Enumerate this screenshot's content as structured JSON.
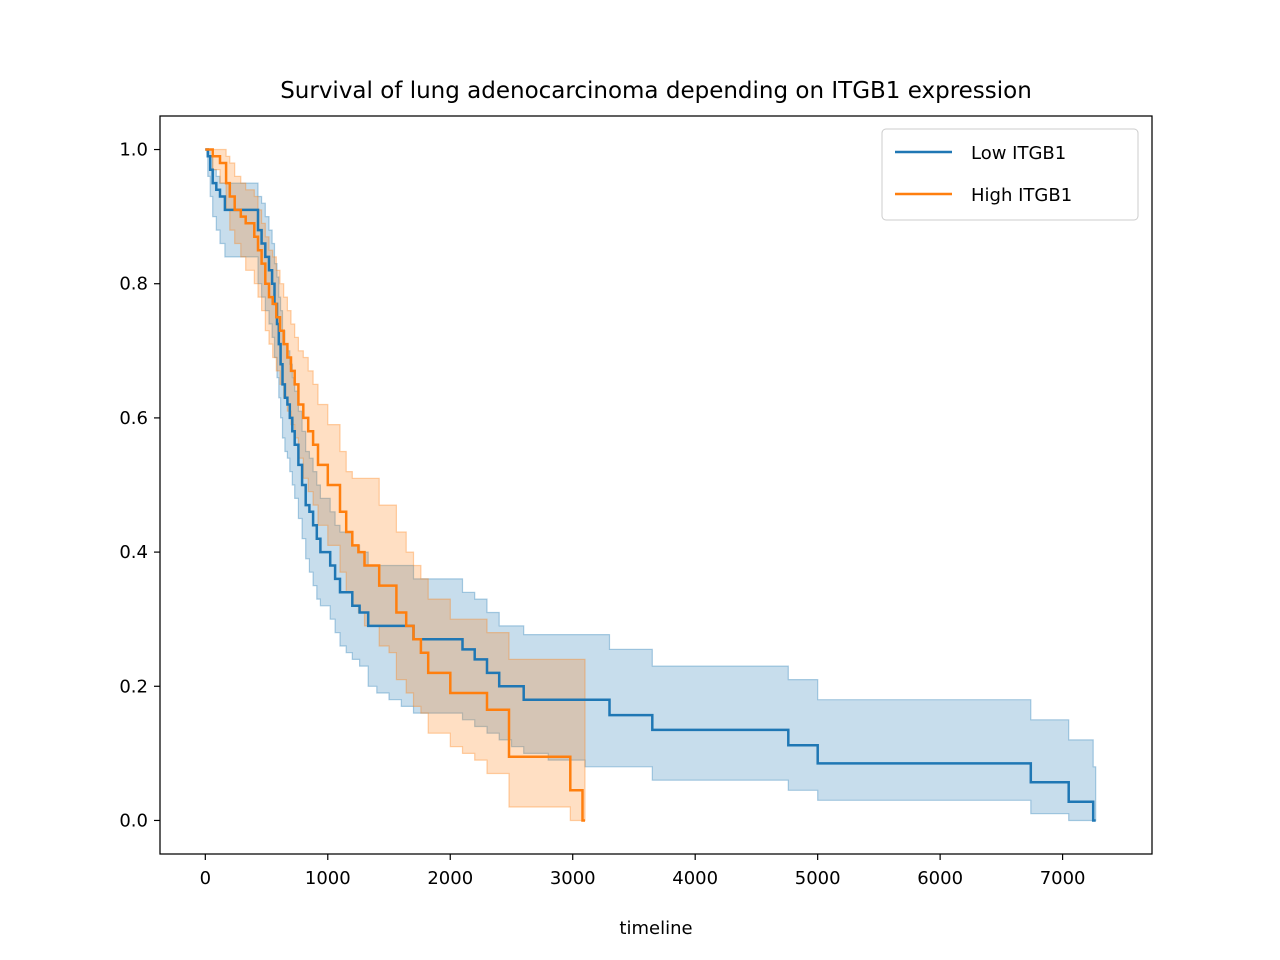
{
  "chart_data": {
    "type": "line",
    "title": "Survival of lung adenocarcinoma depending on ITGB1 expression",
    "xlabel": "timeline",
    "ylabel": "",
    "xlim": [
      -370,
      7730
    ],
    "ylim": [
      -0.05,
      1.05
    ],
    "xticks": [
      0,
      1000,
      2000,
      3000,
      4000,
      5000,
      6000,
      7000
    ],
    "xtick_labels": [
      "0",
      "1000",
      "2000",
      "3000",
      "4000",
      "5000",
      "6000",
      "7000"
    ],
    "yticks": [
      0.0,
      0.2,
      0.4,
      0.6,
      0.8,
      1.0
    ],
    "ytick_labels": [
      "0.0",
      "0.2",
      "0.4",
      "0.6",
      "0.8",
      "1.0"
    ],
    "grid": false,
    "legend_position": "top-right",
    "series": [
      {
        "name": "Low ITGB1",
        "color": "#1f77b4",
        "x": [
          0,
          20,
          40,
          60,
          90,
          120,
          160,
          200,
          250,
          300,
          350,
          400,
          430,
          460,
          490,
          520,
          545,
          565,
          585,
          600,
          615,
          630,
          650,
          670,
          690,
          710,
          730,
          760,
          790,
          820,
          850,
          880,
          910,
          940,
          980,
          1020,
          1060,
          1100,
          1150,
          1200,
          1260,
          1330,
          1400,
          1500,
          1600,
          1700,
          1800,
          1900,
          2000,
          2100,
          2200,
          2300,
          2400,
          2500,
          2600,
          2700,
          2800,
          2900,
          3000,
          3100,
          3200,
          3300,
          3500,
          3650,
          3800,
          4000,
          4200,
          4400,
          4600,
          4760,
          4800,
          4900,
          5000,
          5200,
          5500,
          6000,
          6500,
          6740,
          6800,
          7050,
          7250,
          7270
        ],
        "y": [
          1.0,
          0.99,
          0.97,
          0.95,
          0.94,
          0.93,
          0.91,
          0.91,
          0.91,
          0.91,
          0.91,
          0.91,
          0.88,
          0.86,
          0.84,
          0.82,
          0.8,
          0.77,
          0.74,
          0.71,
          0.68,
          0.65,
          0.63,
          0.62,
          0.6,
          0.58,
          0.56,
          0.53,
          0.5,
          0.47,
          0.46,
          0.44,
          0.42,
          0.4,
          0.4,
          0.38,
          0.36,
          0.34,
          0.34,
          0.32,
          0.31,
          0.29,
          0.29,
          0.29,
          0.29,
          0.27,
          0.27,
          0.27,
          0.27,
          0.255,
          0.24,
          0.22,
          0.2,
          0.2,
          0.18,
          0.18,
          0.18,
          0.18,
          0.18,
          0.18,
          0.18,
          0.157,
          0.157,
          0.135,
          0.135,
          0.135,
          0.135,
          0.135,
          0.135,
          0.112,
          0.112,
          0.112,
          0.085,
          0.085,
          0.085,
          0.085,
          0.085,
          0.057,
          0.057,
          0.028,
          0.0,
          0.0
        ],
        "ci_upper": [
          1.0,
          1.0,
          0.99,
          0.97,
          0.96,
          0.95,
          0.95,
          0.95,
          0.95,
          0.95,
          0.95,
          0.95,
          0.93,
          0.92,
          0.9,
          0.88,
          0.86,
          0.83,
          0.81,
          0.78,
          0.76,
          0.73,
          0.71,
          0.7,
          0.68,
          0.66,
          0.64,
          0.61,
          0.58,
          0.55,
          0.54,
          0.52,
          0.5,
          0.48,
          0.48,
          0.46,
          0.44,
          0.43,
          0.43,
          0.41,
          0.4,
          0.38,
          0.38,
          0.38,
          0.38,
          0.36,
          0.36,
          0.36,
          0.36,
          0.34,
          0.33,
          0.31,
          0.29,
          0.29,
          0.277,
          0.277,
          0.277,
          0.277,
          0.277,
          0.277,
          0.277,
          0.255,
          0.255,
          0.23,
          0.23,
          0.23,
          0.23,
          0.23,
          0.23,
          0.21,
          0.21,
          0.21,
          0.18,
          0.18,
          0.18,
          0.18,
          0.18,
          0.15,
          0.15,
          0.12,
          0.08,
          0.08
        ],
        "ci_lower": [
          1.0,
          0.96,
          0.93,
          0.9,
          0.88,
          0.86,
          0.84,
          0.84,
          0.84,
          0.84,
          0.84,
          0.84,
          0.8,
          0.78,
          0.76,
          0.74,
          0.72,
          0.69,
          0.66,
          0.63,
          0.6,
          0.57,
          0.55,
          0.54,
          0.52,
          0.5,
          0.48,
          0.45,
          0.42,
          0.39,
          0.37,
          0.35,
          0.33,
          0.32,
          0.32,
          0.3,
          0.28,
          0.26,
          0.25,
          0.24,
          0.23,
          0.2,
          0.19,
          0.18,
          0.17,
          0.16,
          0.16,
          0.16,
          0.16,
          0.15,
          0.14,
          0.13,
          0.12,
          0.11,
          0.1,
          0.1,
          0.09,
          0.09,
          0.09,
          0.08,
          0.08,
          0.08,
          0.08,
          0.06,
          0.06,
          0.06,
          0.06,
          0.06,
          0.06,
          0.045,
          0.045,
          0.045,
          0.03,
          0.03,
          0.03,
          0.03,
          0.03,
          0.01,
          0.01,
          0.0,
          0.0,
          0.0
        ]
      },
      {
        "name": "High ITGB1",
        "color": "#ff7f0e",
        "x": [
          0,
          60,
          120,
          170,
          200,
          240,
          290,
          330,
          360,
          400,
          430,
          460,
          490,
          520,
          550,
          580,
          610,
          640,
          670,
          700,
          730,
          760,
          800,
          840,
          880,
          920,
          960,
          1000,
          1050,
          1100,
          1150,
          1200,
          1250,
          1300,
          1350,
          1420,
          1500,
          1560,
          1640,
          1700,
          1760,
          1820,
          1900,
          2000,
          2100,
          2200,
          2300,
          2400,
          2480,
          2600,
          2750,
          2900,
          2980,
          3080,
          3100
        ],
        "y": [
          1.0,
          0.99,
          0.98,
          0.95,
          0.93,
          0.91,
          0.9,
          0.89,
          0.89,
          0.87,
          0.85,
          0.83,
          0.8,
          0.78,
          0.77,
          0.75,
          0.73,
          0.71,
          0.69,
          0.67,
          0.65,
          0.62,
          0.6,
          0.58,
          0.56,
          0.53,
          0.53,
          0.5,
          0.5,
          0.46,
          0.43,
          0.41,
          0.4,
          0.38,
          0.38,
          0.35,
          0.35,
          0.31,
          0.29,
          0.27,
          0.25,
          0.22,
          0.22,
          0.19,
          0.19,
          0.19,
          0.165,
          0.165,
          0.095,
          0.095,
          0.095,
          0.095,
          0.045,
          0.0,
          0.0
        ],
        "ci_upper": [
          1.0,
          1.0,
          1.0,
          0.99,
          0.98,
          0.96,
          0.95,
          0.94,
          0.94,
          0.93,
          0.91,
          0.89,
          0.87,
          0.85,
          0.84,
          0.82,
          0.8,
          0.78,
          0.76,
          0.74,
          0.72,
          0.7,
          0.69,
          0.67,
          0.65,
          0.62,
          0.62,
          0.59,
          0.59,
          0.55,
          0.52,
          0.51,
          0.51,
          0.51,
          0.51,
          0.47,
          0.47,
          0.43,
          0.4,
          0.38,
          0.36,
          0.33,
          0.33,
          0.3,
          0.3,
          0.3,
          0.28,
          0.28,
          0.24,
          0.24,
          0.24,
          0.24,
          0.24,
          0.24,
          0.24
        ],
        "ci_lower": [
          1.0,
          0.97,
          0.95,
          0.91,
          0.88,
          0.86,
          0.84,
          0.82,
          0.82,
          0.8,
          0.78,
          0.76,
          0.73,
          0.71,
          0.69,
          0.67,
          0.65,
          0.63,
          0.61,
          0.59,
          0.57,
          0.54,
          0.51,
          0.49,
          0.47,
          0.44,
          0.44,
          0.41,
          0.41,
          0.37,
          0.34,
          0.32,
          0.31,
          0.29,
          0.29,
          0.26,
          0.25,
          0.21,
          0.19,
          0.17,
          0.16,
          0.13,
          0.13,
          0.11,
          0.1,
          0.09,
          0.07,
          0.07,
          0.02,
          0.02,
          0.02,
          0.02,
          0.0,
          0.0,
          0.0
        ]
      }
    ]
  }
}
